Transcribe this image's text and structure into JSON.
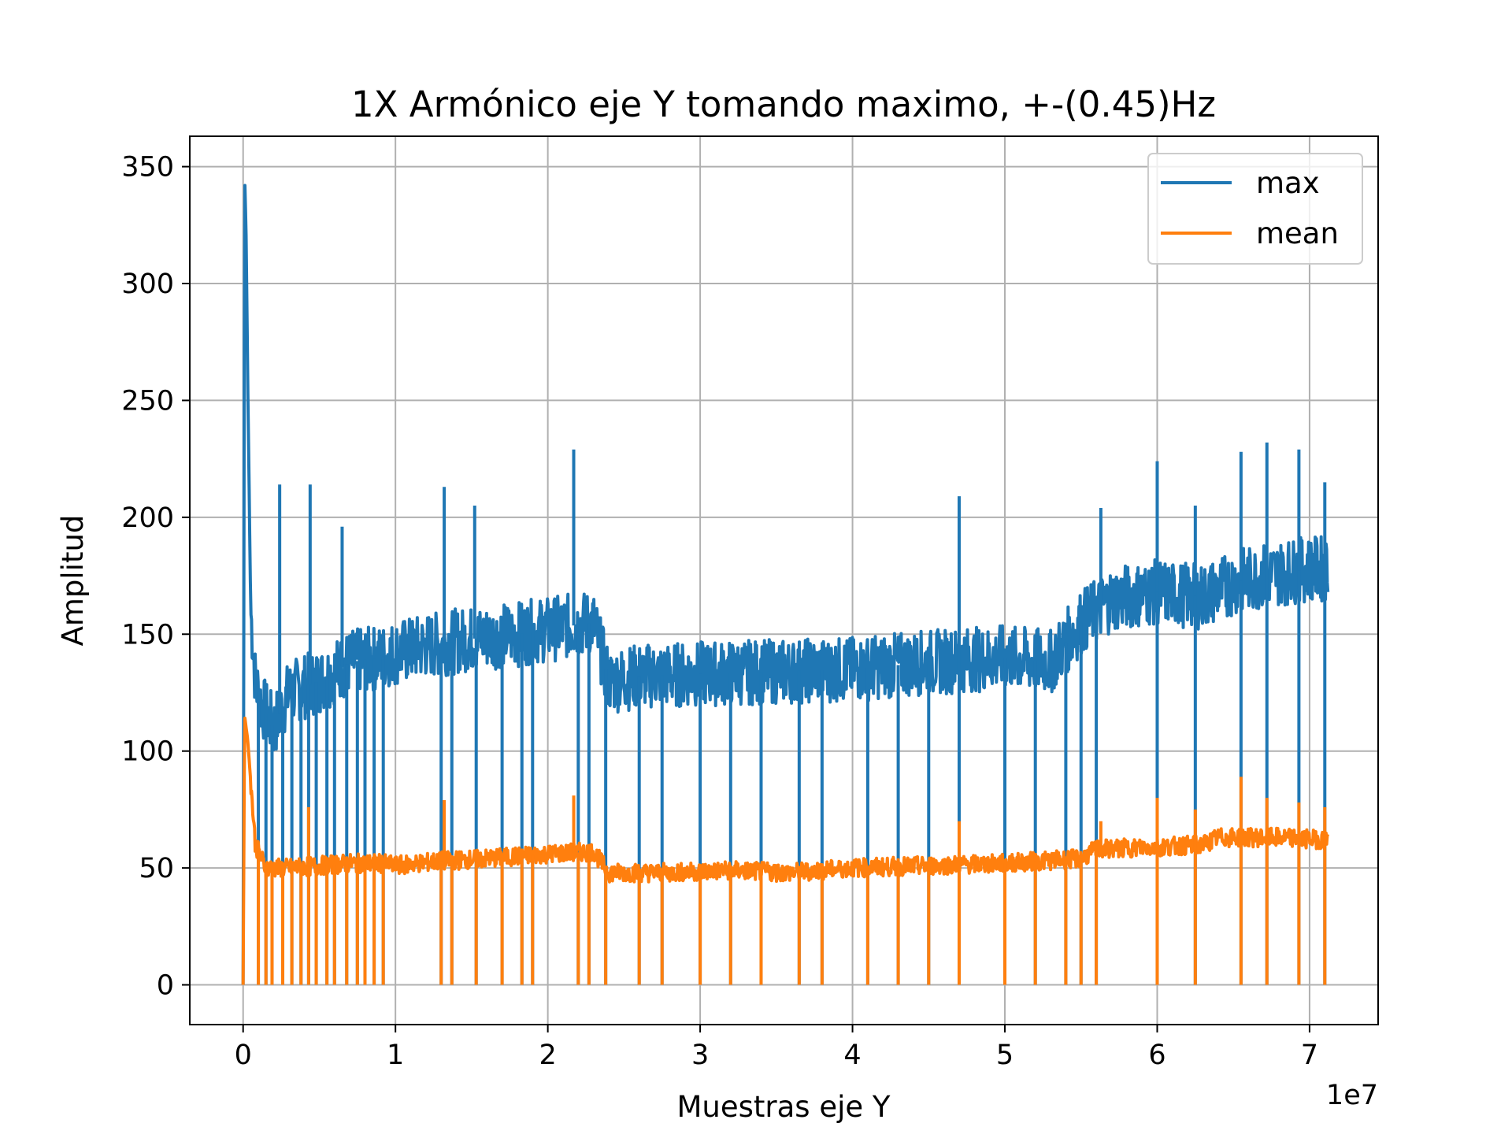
{
  "colors": {
    "max": "#1f77b4",
    "mean": "#ff7f0e",
    "grid": "#b0b0b0",
    "axes": "#000000",
    "legend_border": "#cccccc"
  },
  "chart_data": {
    "type": "line",
    "title": "1X Armónico eje Y tomando maximo, +-(0.45)Hz",
    "xlabel": "Muestras eje Y",
    "ylabel": "Amplitud",
    "x_multiplier_label": "1e7",
    "xlim": [
      -0.35,
      7.45
    ],
    "ylim": [
      -17,
      363
    ],
    "x_scale_factor": 10000000,
    "xticks": [
      0,
      1,
      2,
      3,
      4,
      5,
      6,
      7
    ],
    "xtick_labels": [
      "0",
      "1",
      "2",
      "3",
      "4",
      "5",
      "6",
      "7"
    ],
    "yticks": [
      0,
      50,
      100,
      150,
      200,
      250,
      300,
      350
    ],
    "ytick_labels": [
      "0",
      "50",
      "100",
      "150",
      "200",
      "250",
      "300",
      "350"
    ],
    "grid": true,
    "legend_position": "upper right",
    "series": [
      {
        "name": "max",
        "color_key": "max",
        "x": [
          0.0,
          0.01,
          0.02,
          0.03,
          0.05,
          0.08,
          0.12,
          0.2,
          0.3,
          0.5,
          0.7,
          0.9,
          1.0,
          1.2,
          1.5,
          1.8,
          2.0,
          2.2,
          2.3,
          2.4,
          2.6,
          3.0,
          3.5,
          4.0,
          4.5,
          5.0,
          5.3,
          5.5,
          5.7,
          6.0,
          6.3,
          6.5,
          6.7,
          7.0,
          7.12
        ],
        "y": [
          0,
          347,
          320,
          260,
          160,
          130,
          120,
          110,
          125,
          130,
          138,
          140,
          142,
          145,
          148,
          150,
          152,
          154,
          155,
          130,
          132,
          133,
          134,
          135,
          138,
          140,
          138,
          155,
          165,
          168,
          166,
          172,
          175,
          178,
          178
        ],
        "spikes_up": [
          [
            0.24,
            214
          ],
          [
            0.44,
            214
          ],
          [
            0.65,
            196
          ],
          [
            1.32,
            213
          ],
          [
            1.52,
            205
          ],
          [
            2.17,
            229
          ],
          [
            4.7,
            209
          ],
          [
            5.63,
            204
          ],
          [
            6.0,
            224
          ],
          [
            6.25,
            205
          ],
          [
            6.55,
            228
          ],
          [
            6.72,
            232
          ],
          [
            6.93,
            229
          ],
          [
            7.1,
            215
          ]
        ],
        "spikes_down": [
          0.1,
          0.15,
          0.19,
          0.26,
          0.32,
          0.38,
          0.43,
          0.48,
          0.55,
          0.6,
          0.68,
          0.75,
          0.8,
          0.86,
          0.92,
          1.3,
          1.37,
          1.53,
          1.7,
          1.83,
          1.9,
          2.2,
          2.27,
          2.38,
          2.6,
          2.75,
          3.0,
          3.2,
          3.4,
          3.65,
          3.8,
          4.1,
          4.3,
          4.5,
          4.7,
          5.0,
          5.2,
          5.4,
          5.5,
          5.6,
          6.0,
          6.25,
          6.55,
          6.72,
          6.93,
          7.1
        ]
      },
      {
        "name": "mean",
        "color_key": "mean",
        "x": [
          0.0,
          0.01,
          0.03,
          0.08,
          0.15,
          0.3,
          0.5,
          0.7,
          0.9,
          1.0,
          1.3,
          1.6,
          2.0,
          2.3,
          2.4,
          2.8,
          3.2,
          3.6,
          4.0,
          4.5,
          5.0,
          5.5,
          5.6,
          6.0,
          6.3,
          6.4,
          6.8,
          7.12
        ],
        "y": [
          0,
          115,
          105,
          60,
          50,
          50,
          51,
          52,
          52,
          51,
          53,
          54,
          56,
          57,
          48,
          48,
          49,
          48,
          50,
          51,
          52,
          54,
          58,
          59,
          60,
          63,
          63,
          62
        ],
        "spikes_up": [
          [
            0.43,
            76
          ],
          [
            1.32,
            79
          ],
          [
            2.17,
            81
          ],
          [
            4.7,
            70
          ],
          [
            5.63,
            70
          ],
          [
            6.0,
            80
          ],
          [
            6.25,
            75
          ],
          [
            6.55,
            89
          ],
          [
            6.72,
            80
          ],
          [
            6.93,
            78
          ],
          [
            7.1,
            76
          ]
        ],
        "spikes_down": [
          0.1,
          0.15,
          0.19,
          0.26,
          0.32,
          0.38,
          0.43,
          0.48,
          0.55,
          0.6,
          0.68,
          0.75,
          0.8,
          0.86,
          0.92,
          1.3,
          1.37,
          1.53,
          1.7,
          1.83,
          1.9,
          2.2,
          2.27,
          2.38,
          2.6,
          2.75,
          3.0,
          3.2,
          3.4,
          3.65,
          3.8,
          4.1,
          4.3,
          4.5,
          4.7,
          5.0,
          5.2,
          5.4,
          5.5,
          5.6,
          6.0,
          6.25,
          6.55,
          6.72,
          6.93,
          7.1
        ]
      }
    ]
  }
}
